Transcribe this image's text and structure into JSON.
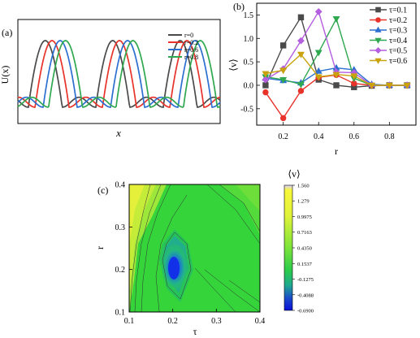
{
  "chart_data": [
    {
      "panel_label": "(a)",
      "type": "line",
      "xlabel": "x",
      "ylabel": "U(x)",
      "legend_position": "top-right",
      "series": [
        {
          "name": "r=0",
          "color": "#4a4a4a"
        },
        {
          "name": "r=0.2",
          "color": "#e8322a"
        },
        {
          "name": "r=0.6",
          "color": "#2c6fd1"
        },
        {
          "name": "r=0.8",
          "color": "#2fa84f"
        }
      ]
    },
    {
      "panel_label": "(b)",
      "type": "line",
      "xlabel": "r",
      "ylabel": "⟨v⟩",
      "xlim": [
        0.05,
        0.95
      ],
      "ylim": [
        -0.85,
        1.75
      ],
      "xticks": [
        "0.2",
        "0.4",
        "0.6",
        "0.8"
      ],
      "xtick_values": [
        0.2,
        0.4,
        0.6,
        0.8
      ],
      "yticks": [
        "-0.5",
        "0.0",
        "0.5",
        "1.0",
        "1.5"
      ],
      "ytick_values": [
        -0.5,
        0.0,
        0.5,
        1.0,
        1.5
      ],
      "legend_position": "top-right",
      "x": [
        0.1,
        0.2,
        0.3,
        0.4,
        0.5,
        0.6,
        0.7,
        0.8,
        0.9
      ],
      "series": [
        {
          "name": "τ=0.1",
          "color": "#4a4a4a",
          "marker": "square",
          "values": [
            0.0,
            0.85,
            1.45,
            0.12,
            0.0,
            -0.04,
            -0.01,
            0.0,
            0.0
          ]
        },
        {
          "name": "τ=0.2",
          "color": "#e8322a",
          "marker": "circle",
          "values": [
            -0.15,
            -0.7,
            -0.12,
            0.17,
            0.22,
            0.04,
            0.0,
            0.0,
            0.0
          ]
        },
        {
          "name": "τ=0.3",
          "color": "#2c6fd1",
          "marker": "triangle",
          "values": [
            0.15,
            0.1,
            0.05,
            0.3,
            0.37,
            0.33,
            0.02,
            0.0,
            0.0
          ]
        },
        {
          "name": "τ=0.4",
          "color": "#2fa84f",
          "marker": "triangle-down",
          "values": [
            0.18,
            0.12,
            0.02,
            0.7,
            1.42,
            0.15,
            0.0,
            0.0,
            0.0
          ]
        },
        {
          "name": "τ=0.5",
          "color": "#b45ee0",
          "marker": "diamond",
          "values": [
            0.12,
            0.35,
            0.95,
            1.57,
            0.28,
            0.27,
            0.0,
            0.0,
            0.0
          ]
        },
        {
          "name": "τ=0.6",
          "color": "#c9a20c",
          "marker": "triangle-down",
          "values": [
            0.25,
            0.32,
            0.66,
            0.18,
            0.23,
            0.2,
            0.0,
            0.0,
            0.0
          ]
        }
      ]
    },
    {
      "panel_label": "(c)",
      "type": "heatmap",
      "xlabel": "τ",
      "ylabel": "r",
      "colorbar_label": "⟨v⟩",
      "xlim": [
        0.1,
        0.4
      ],
      "ylim": [
        0.1,
        0.4
      ],
      "xticks": [
        "0.1",
        "0.2",
        "0.3",
        "0.4"
      ],
      "xtick_values": [
        0.1,
        0.2,
        0.3,
        0.4
      ],
      "yticks": [
        "0.1",
        "0.2",
        "0.3",
        "0.4"
      ],
      "ytick_values": [
        0.1,
        0.2,
        0.3,
        0.4
      ],
      "colorbar_ticks": [
        "1.560",
        "1.279",
        "0.9975",
        "0.7163",
        "0.4350",
        "0.1537",
        "-0.1275",
        "-0.4088",
        "-0.6900"
      ],
      "colorbar_tick_values": [
        1.56,
        1.279,
        0.9975,
        0.7163,
        0.435,
        0.1537,
        -0.1275,
        -0.4088,
        -0.69
      ]
    }
  ]
}
